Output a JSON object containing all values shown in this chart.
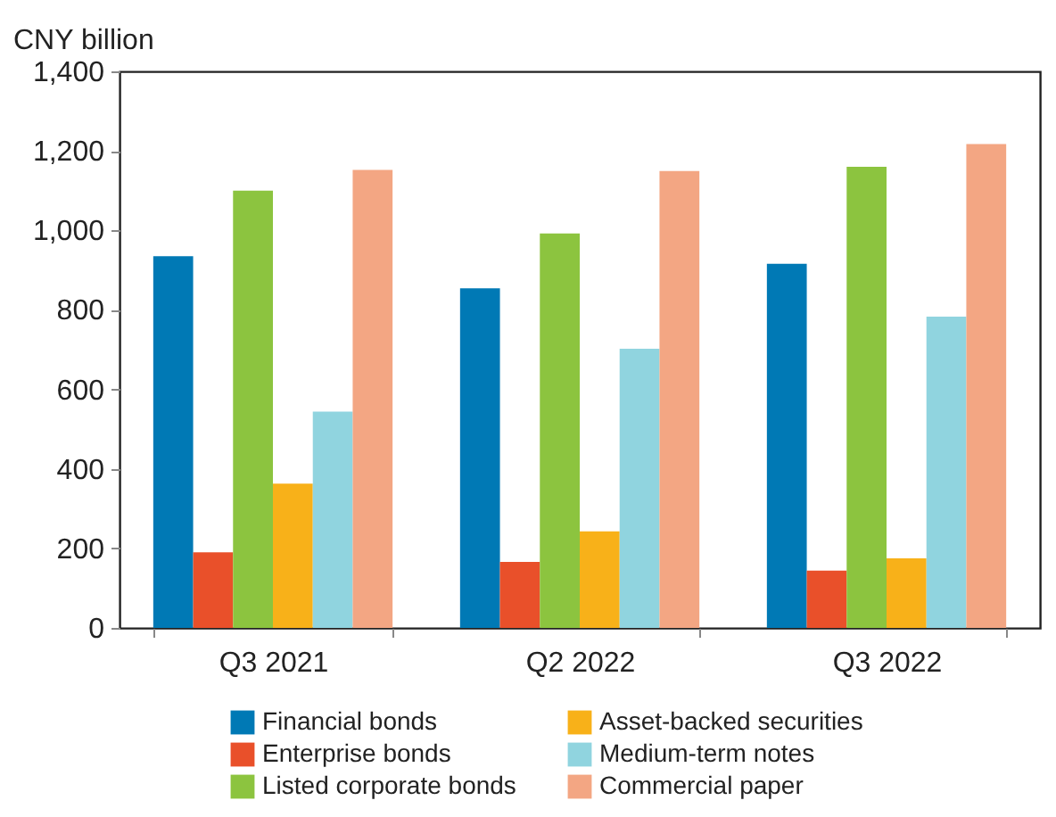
{
  "chart_data": {
    "type": "bar",
    "ylabel": "CNY billion",
    "categories": [
      "Q3 2021",
      "Q2 2022",
      "Q3 2022"
    ],
    "series": [
      {
        "name": "Financial bonds",
        "color": "#0079b5",
        "values": [
          935,
          854,
          916
        ]
      },
      {
        "name": "Enterprise bonds",
        "color": "#e9502a",
        "values": [
          190,
          166,
          144
        ]
      },
      {
        "name": "Listed corporate bonds",
        "color": "#8cc43f",
        "values": [
          1100,
          992,
          1160
        ]
      },
      {
        "name": "Asset-backed securities",
        "color": "#f8b119",
        "values": [
          363,
          243,
          175
        ]
      },
      {
        "name": "Medium-term notes",
        "color": "#90d4df",
        "values": [
          544,
          702,
          783
        ]
      },
      {
        "name": "Commercial paper",
        "color": "#f3a683",
        "values": [
          1152,
          1149,
          1217
        ]
      }
    ],
    "ylim": [
      0,
      1400
    ],
    "yticks": [
      0,
      200,
      400,
      600,
      800,
      {
        "value": 1000,
        "label": "1,000"
      },
      {
        "value": 1200,
        "label": "1,200"
      },
      {
        "value": 1400,
        "label": "1,400"
      }
    ],
    "grid": false,
    "legend": "bottom"
  }
}
